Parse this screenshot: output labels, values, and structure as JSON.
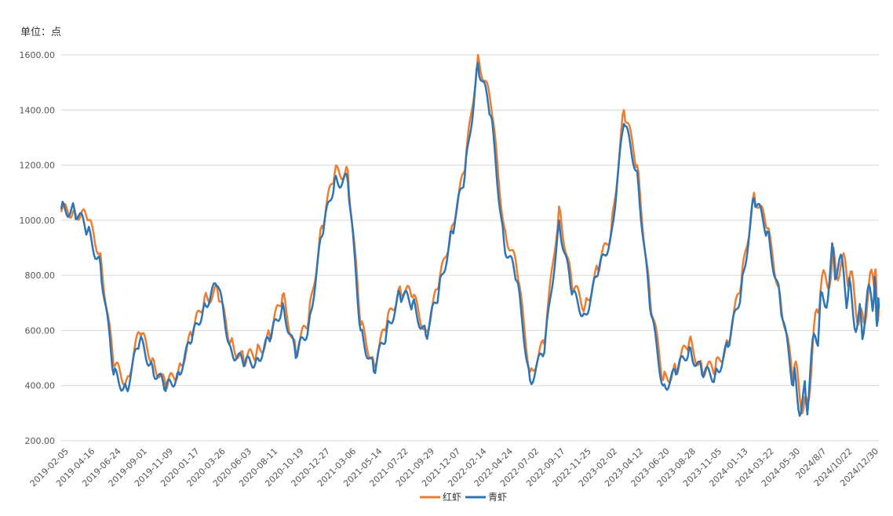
{
  "chart_data": {
    "type": "line",
    "unit_label": "单位：点",
    "title": "",
    "xlabel": "",
    "ylabel": "",
    "ylim": [
      200,
      1600
    ],
    "y_ticks": [
      "200.00",
      "400.00",
      "600.00",
      "800.00",
      "1000.00",
      "1200.00",
      "1400.00",
      "1600.00"
    ],
    "x_tick_labels": [
      "2019-02-05",
      "2019-04-16",
      "2019-06-24",
      "2019-09-01",
      "2019-11-09",
      "2020-01-17",
      "2020-03-26",
      "2020-06-03",
      "2020-08-11",
      "2020-10-19",
      "2020-12-27",
      "2021-03-06",
      "2021-05-14",
      "2021-07-22",
      "2021-09-29",
      "2021-12-07",
      "2022-02-14",
      "2022-04-24",
      "2022-07-02",
      "2022-09-17",
      "2022-11-25",
      "2023-02-02",
      "2023-04-12",
      "2023-06-20",
      "2023-08-28",
      "2023-11-05",
      "2024-01-13",
      "2024-03-22",
      "2024-05-30",
      "2024/8/7",
      "2024/10/22",
      "2024/12/30"
    ],
    "grid": true,
    "legend_position": "bottom",
    "x": [
      "2019-02-05",
      "2019-03-12",
      "2019-04-16",
      "2019-05-20",
      "2019-06-24",
      "2019-07-28",
      "2019-09-01",
      "2019-10-05",
      "2019-11-09",
      "2019-12-13",
      "2020-01-17",
      "2020-02-20",
      "2020-03-26",
      "2020-04-29",
      "2020-06-03",
      "2020-07-07",
      "2020-08-11",
      "2020-09-14",
      "2020-10-19",
      "2020-11-22",
      "2020-12-27",
      "2021-01-30",
      "2021-03-06",
      "2021-04-09",
      "2021-05-14",
      "2021-06-17",
      "2021-07-22",
      "2021-08-25",
      "2021-09-29",
      "2021-11-02",
      "2021-12-07",
      "2022-01-10",
      "2022-02-14",
      "2022-03-20",
      "2022-04-24",
      "2022-05-28",
      "2022-07-02",
      "2022-08-09",
      "2022-09-17",
      "2022-10-21",
      "2022-11-25",
      "2022-12-29",
      "2023-02-02",
      "2023-03-08",
      "2023-04-12",
      "2023-05-16",
      "2023-06-20",
      "2023-07-24",
      "2023-08-28",
      "2023-10-01",
      "2023-11-05",
      "2023-12-09",
      "2024-01-13",
      "2024-02-16",
      "2024-03-22",
      "2024-04-25",
      "2024-05-30",
      "2024-07-03",
      "2024-08-07",
      "2024-09-14",
      "2024-10-22",
      "2024-11-26",
      "2024-12-30",
      "2025-01-12"
    ],
    "series": [
      {
        "name": "红虾",
        "color": "#ED7D31",
        "values": [
          1030,
          1040,
          1000,
          880,
          470,
          420,
          590,
          500,
          390,
          460,
          580,
          720,
          740,
          560,
          490,
          520,
          580,
          730,
          520,
          640,
          980,
          1170,
          1180,
          620,
          480,
          620,
          760,
          720,
          600,
          760,
          980,
          1180,
          1600,
          1420,
          980,
          820,
          450,
          550,
          1050,
          760,
          690,
          820,
          960,
          1400,
          1200,
          720,
          420,
          460,
          560,
          460,
          460,
          560,
          770,
          1100,
          970,
          730,
          420,
          360,
          680,
          900,
          760,
          680,
          760,
          700
        ]
      },
      {
        "name": "青虾",
        "color": "#2E75B6",
        "values": [
          1040,
          1040,
          960,
          840,
          440,
          390,
          560,
          470,
          380,
          450,
          560,
          700,
          760,
          540,
          470,
          500,
          560,
          700,
          500,
          620,
          940,
          1150,
          1140,
          600,
          450,
          600,
          730,
          700,
          580,
          740,
          960,
          1160,
          1570,
          1380,
          920,
          780,
          420,
          520,
          1000,
          730,
          660,
          800,
          950,
          1350,
          1180,
          680,
          400,
          440,
          540,
          440,
          440,
          540,
          750,
          1080,
          960,
          710,
          400,
          340,
          640,
          880,
          720,
          640,
          720,
          680
        ]
      }
    ]
  }
}
